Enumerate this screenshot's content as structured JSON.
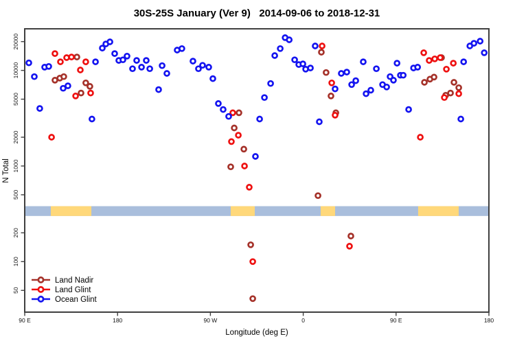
{
  "chart_data": {
    "type": "scatter",
    "title": "30S-25S January (Ver 9)   2014-09-06 to 2018-12-31",
    "xlabel": "Longitude (deg E)",
    "ylabel": "N Total",
    "x_axis": {
      "range_deg": [
        90,
        540
      ],
      "ticks": [
        {
          "deg": 90,
          "label": "90 E"
        },
        {
          "deg": 180,
          "label": "180"
        },
        {
          "deg": 270,
          "label": "90 W"
        },
        {
          "deg": 360,
          "label": "0"
        },
        {
          "deg": 450,
          "label": "90 E"
        },
        {
          "deg": 540,
          "label": "180"
        }
      ]
    },
    "y_axis": {
      "scale": "log",
      "range": [
        40,
        24000
      ],
      "ticks": [
        {
          "value": 50,
          "label": "50"
        },
        {
          "value": 100,
          "label": "100"
        },
        {
          "value": 200,
          "label": "200"
        },
        {
          "value": 500,
          "label": "500"
        },
        {
          "value": 1000,
          "label": "1000"
        },
        {
          "value": 2000,
          "label": "2000"
        },
        {
          "value": 5000,
          "label": "5000"
        },
        {
          "value": 10000,
          "label": "10000"
        },
        {
          "value": 20000,
          "label": "20000"
        }
      ]
    },
    "legend": [
      {
        "name": "Land Nadir",
        "color": "#A5322A"
      },
      {
        "name": "Land Glint",
        "color": "#EE1111"
      },
      {
        "name": "Ocean Glint",
        "color": "#1414F0"
      }
    ],
    "land_strip": {
      "ocean_color": "#A9BEDC",
      "land_color": "#FFD87A",
      "value_band": [
        300,
        380
      ],
      "range_deg": [
        90,
        540
      ],
      "land_segments_deg": [
        [
          115.3,
          154.6
        ],
        [
          289.7,
          313.0
        ],
        [
          376.9,
          390.9
        ],
        [
          471.4,
          510.7
        ]
      ]
    },
    "series": [
      {
        "name": "Land Nadir",
        "color": "#A5322A",
        "points": [
          [
            119.3,
            7900
          ],
          [
            124.0,
            8300
          ],
          [
            127.9,
            8600
          ],
          [
            140.6,
            13800
          ],
          [
            144.6,
            5800
          ],
          [
            149.2,
            7400
          ],
          [
            153.2,
            6800
          ],
          [
            289.7,
            980
          ],
          [
            293.1,
            2500
          ],
          [
            297.7,
            3600
          ],
          [
            302.4,
            1500
          ],
          [
            309.1,
            150
          ],
          [
            311.1,
            41
          ],
          [
            374.3,
            490
          ],
          [
            377.6,
            15500
          ],
          [
            382.2,
            9500
          ],
          [
            386.9,
            5400
          ],
          [
            391.6,
            3600
          ],
          [
            406.2,
            185
          ],
          [
            477.5,
            7500
          ],
          [
            482.8,
            8100
          ],
          [
            486.8,
            8500
          ],
          [
            494.1,
            13600
          ],
          [
            498.1,
            5500
          ],
          [
            502.8,
            5800
          ],
          [
            506.1,
            7500
          ],
          [
            510.8,
            6600
          ]
        ]
      },
      {
        "name": "Land Glint",
        "color": "#EE1111",
        "points": [
          [
            116.0,
            2000
          ],
          [
            119.3,
            15000
          ],
          [
            124.6,
            12300
          ],
          [
            130.6,
            13600
          ],
          [
            135.3,
            13800
          ],
          [
            139.3,
            5400
          ],
          [
            143.9,
            10100
          ],
          [
            149.2,
            12300
          ],
          [
            153.9,
            5800
          ],
          [
            290.4,
            1800
          ],
          [
            291.7,
            3600
          ],
          [
            297.1,
            2100
          ],
          [
            303.1,
            1000
          ],
          [
            307.7,
            600
          ],
          [
            311.1,
            100
          ],
          [
            378.3,
            18000
          ],
          [
            387.6,
            7400
          ],
          [
            390.9,
            3400
          ],
          [
            404.9,
            145
          ],
          [
            473.5,
            2000
          ],
          [
            476.8,
            15300
          ],
          [
            482.1,
            12700
          ],
          [
            487.5,
            13200
          ],
          [
            492.8,
            13600
          ],
          [
            496.8,
            5200
          ],
          [
            498.8,
            10300
          ],
          [
            505.5,
            11900
          ],
          [
            510.8,
            5700
          ]
        ]
      },
      {
        "name": "Ocean Glint",
        "color": "#1414F0",
        "points": [
          [
            94,
            12000
          ],
          [
            99.3,
            8600
          ],
          [
            104.6,
            4000
          ],
          [
            109.3,
            10800
          ],
          [
            113.3,
            11000
          ],
          [
            127.3,
            6500
          ],
          [
            131.9,
            6900
          ],
          [
            155.2,
            3100
          ],
          [
            158.6,
            12300
          ],
          [
            165.2,
            17100
          ],
          [
            168.6,
            18900
          ],
          [
            172.6,
            19900
          ],
          [
            177.2,
            15000
          ],
          [
            181.2,
            12700
          ],
          [
            185.2,
            12900
          ],
          [
            189.2,
            14100
          ],
          [
            194.5,
            10400
          ],
          [
            198.5,
            12700
          ],
          [
            203.2,
            10800
          ],
          [
            207.8,
            12700
          ],
          [
            211.2,
            10400
          ],
          [
            219.8,
            6300
          ],
          [
            223.2,
            11200
          ],
          [
            227.8,
            9300
          ],
          [
            237.8,
            16300
          ],
          [
            242.4,
            16900
          ],
          [
            253.1,
            12500
          ],
          [
            258.4,
            10400
          ],
          [
            262.4,
            11300
          ],
          [
            268.4,
            10800
          ],
          [
            272.4,
            8200
          ],
          [
            277.7,
            4500
          ],
          [
            282.4,
            3900
          ],
          [
            287.7,
            3300
          ],
          [
            313.7,
            1260
          ],
          [
            317.7,
            3100
          ],
          [
            322.4,
            5200
          ],
          [
            328.4,
            7300
          ],
          [
            332.4,
            14300
          ],
          [
            337.7,
            16900
          ],
          [
            342.4,
            22000
          ],
          [
            346.4,
            20900
          ],
          [
            351.7,
            12900
          ],
          [
            355.7,
            11500
          ],
          [
            359.7,
            11700
          ],
          [
            362.3,
            10300
          ],
          [
            367,
            10600
          ],
          [
            371.6,
            18000
          ],
          [
            375.6,
            2900
          ],
          [
            390.9,
            6400
          ],
          [
            396.9,
            9300
          ],
          [
            402.2,
            9600
          ],
          [
            406.9,
            7100
          ],
          [
            410.9,
            7800
          ],
          [
            418.2,
            12300
          ],
          [
            420.9,
            5700
          ],
          [
            425.5,
            6200
          ],
          [
            430.9,
            10400
          ],
          [
            436.9,
            7100
          ],
          [
            440.9,
            6700
          ],
          [
            444.2,
            8600
          ],
          [
            447.5,
            7900
          ],
          [
            450.9,
            11900
          ],
          [
            454.2,
            8900
          ],
          [
            456.9,
            8900
          ],
          [
            462.2,
            3900
          ],
          [
            466.9,
            10600
          ],
          [
            470.9,
            10800
          ],
          [
            512.8,
            3100
          ],
          [
            515.5,
            12300
          ],
          [
            521.5,
            18000
          ],
          [
            525.5,
            19200
          ],
          [
            531.5,
            20200
          ],
          [
            535.5,
            15300
          ]
        ]
      }
    ]
  }
}
